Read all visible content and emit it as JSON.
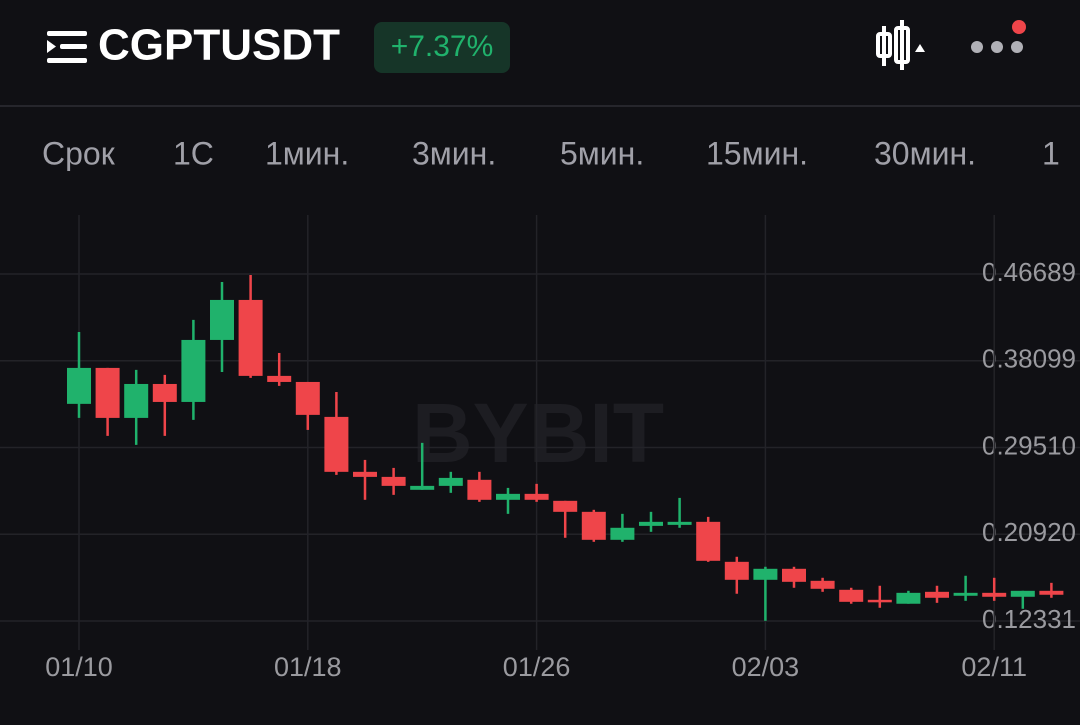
{
  "header": {
    "symbol": "CGPTUSDT",
    "change": "+7.37%"
  },
  "timeframes": [
    "Срок",
    "1С",
    "1мин.",
    "3мин.",
    "5мин.",
    "15мин.",
    "30мин.",
    "1"
  ],
  "watermark": "BYBIT",
  "chart_data": {
    "type": "candlestick",
    "categories": [
      "01/10",
      null,
      null,
      null,
      null,
      null,
      null,
      null,
      "01/18",
      null,
      null,
      null,
      null,
      null,
      null,
      null,
      "01/26",
      null,
      null,
      null,
      null,
      null,
      null,
      null,
      "02/03",
      null,
      null,
      null,
      null,
      null,
      null,
      null,
      "02/11",
      null,
      null
    ],
    "open": [
      0.3383,
      0.3739,
      0.3244,
      0.358,
      0.3402,
      0.4016,
      0.4412,
      0.366,
      0.36,
      0.3254,
      0.271,
      0.266,
      0.2532,
      0.2571,
      0.2631,
      0.2433,
      0.2492,
      0.2423,
      0.2314,
      0.2037,
      0.2175,
      0.2185,
      0.2215,
      0.1819,
      0.1641,
      0.175,
      0.1631,
      0.1542,
      0.1443,
      0.1404,
      0.1522,
      0.1483,
      0.1512,
      0.1473,
      0.1532
    ],
    "high": [
      0.4095,
      0.3739,
      0.3719,
      0.367,
      0.4214,
      0.459,
      0.4659,
      0.3887,
      0.36,
      0.3501,
      0.2828,
      0.2749,
      0.2997,
      0.271,
      0.271,
      0.2551,
      0.2591,
      0.2423,
      0.2334,
      0.2294,
      0.2314,
      0.2452,
      0.2264,
      0.1869,
      0.177,
      0.177,
      0.1661,
      0.1562,
      0.1582,
      0.1532,
      0.1582,
      0.1681,
      0.1661,
      0.1532,
      0.1611
    ],
    "low": [
      0.3244,
      0.3066,
      0.2977,
      0.3066,
      0.3224,
      0.3699,
      0.364,
      0.3561,
      0.3125,
      0.268,
      0.2433,
      0.2482,
      0.2532,
      0.2502,
      0.2413,
      0.2294,
      0.2413,
      0.2057,
      0.2017,
      0.2017,
      0.2116,
      0.2156,
      0.1819,
      0.1503,
      0.1235,
      0.1562,
      0.1522,
      0.1404,
      0.1364,
      0.1404,
      0.1413,
      0.1433,
      0.1433,
      0.1354,
      0.1463
    ],
    "close": [
      0.3739,
      0.3244,
      0.358,
      0.3402,
      0.4016,
      0.4412,
      0.366,
      0.36,
      0.3274,
      0.271,
      0.266,
      0.2571,
      0.2571,
      0.265,
      0.2433,
      0.2492,
      0.2433,
      0.2314,
      0.2037,
      0.2156,
      0.2215,
      0.2215,
      0.1829,
      0.1641,
      0.175,
      0.1621,
      0.1552,
      0.1423,
      0.1423,
      0.1512,
      0.1463,
      0.1512,
      0.1473,
      0.1532,
      0.1493
    ],
    "up_color": "#20b26c",
    "down_color": "#ef454a",
    "ylim": [
      0.0946,
      0.5253
    ],
    "yticks": [
      0.46689,
      0.38099,
      {
        "value": 0.2951,
        "label": "0.29510"
      },
      {
        "value": 0.2092,
        "label": "0.20920"
      },
      0.12331
    ],
    "grid": true
  }
}
